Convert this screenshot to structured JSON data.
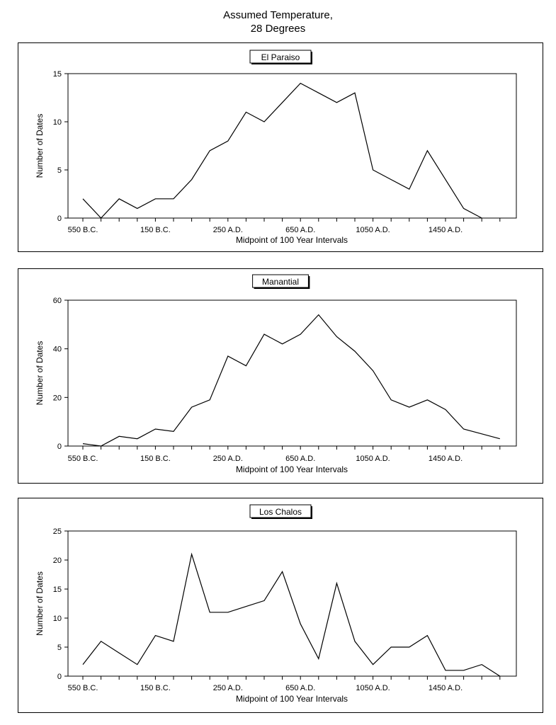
{
  "title": {
    "line1": "Assumed Temperature,",
    "line2": "28 Degrees"
  },
  "chart_data": [
    {
      "type": "line",
      "title": "El Paraiso",
      "xlabel": "Midpoint of 100 Year Intervals",
      "ylabel": "Number of Dates",
      "ylim": [
        0,
        15
      ],
      "yticks": [
        0,
        5,
        10,
        15
      ],
      "x_tick_labels": [
        "550 B.C.",
        "150 B.C.",
        "250 A.D.",
        "650 A.D.",
        "1050 A.D.",
        "1450 A.D."
      ],
      "x": [
        "550 B.C.",
        "450 B.C.",
        "350 B.C.",
        "250 B.C.",
        "150 B.C.",
        "50 B.C.",
        "50 A.D.",
        "150 A.D.",
        "250 A.D.",
        "350 A.D.",
        "450 A.D.",
        "550 A.D.",
        "650 A.D.",
        "750 A.D.",
        "850 A.D.",
        "950 A.D.",
        "1050 A.D.",
        "1150 A.D.",
        "1250 A.D.",
        "1350 A.D.",
        "1450 A.D.",
        "1550 A.D.",
        "1650 A.D.",
        "1750 A.D."
      ],
      "values": [
        2,
        0,
        2,
        1,
        2,
        2,
        4,
        7,
        8,
        11,
        10,
        12,
        14,
        13,
        12,
        13,
        5,
        4,
        3,
        7,
        4,
        1,
        0,
        null
      ],
      "grid": false
    },
    {
      "type": "line",
      "title": "Manantial",
      "xlabel": "Midpoint of 100 Year Intervals",
      "ylabel": "Number of Dates",
      "ylim": [
        0,
        60
      ],
      "yticks": [
        0,
        20,
        40,
        60
      ],
      "x_tick_labels": [
        "550 B.C.",
        "150 B.C.",
        "250 A.D.",
        "650 A.D.",
        "1050 A.D.",
        "1450 A.D."
      ],
      "x": [
        "550 B.C.",
        "450 B.C.",
        "350 B.C.",
        "250 B.C.",
        "150 B.C.",
        "50 B.C.",
        "50 A.D.",
        "150 A.D.",
        "250 A.D.",
        "350 A.D.",
        "450 A.D.",
        "550 A.D.",
        "650 A.D.",
        "750 A.D.",
        "850 A.D.",
        "950 A.D.",
        "1050 A.D.",
        "1150 A.D.",
        "1250 A.D.",
        "1350 A.D.",
        "1450 A.D.",
        "1550 A.D.",
        "1650 A.D.",
        "1750 A.D."
      ],
      "values": [
        1,
        0,
        4,
        3,
        7,
        6,
        16,
        19,
        37,
        33,
        46,
        42,
        46,
        54,
        45,
        39,
        31,
        19,
        16,
        19,
        15,
        7,
        5,
        3
      ],
      "grid": false
    },
    {
      "type": "line",
      "title": "Los Chalos",
      "xlabel": "Midpoint of 100 Year Intervals",
      "ylabel": "Number of Dates",
      "ylim": [
        0,
        25
      ],
      "yticks": [
        0,
        5,
        10,
        15,
        20,
        25
      ],
      "x_tick_labels": [
        "550 B.C.",
        "150 B.C.",
        "250 A.D.",
        "650 A.D.",
        "1050 A.D.",
        "1450 A.D."
      ],
      "x": [
        "550 B.C.",
        "450 B.C.",
        "350 B.C.",
        "250 B.C.",
        "150 B.C.",
        "50 B.C.",
        "50 A.D.",
        "150 A.D.",
        "250 A.D.",
        "350 A.D.",
        "450 A.D.",
        "550 A.D.",
        "650 A.D.",
        "750 A.D.",
        "850 A.D.",
        "950 A.D.",
        "1050 A.D.",
        "1150 A.D.",
        "1250 A.D.",
        "1350 A.D.",
        "1450 A.D.",
        "1550 A.D.",
        "1650 A.D.",
        "1750 A.D."
      ],
      "values": [
        2,
        6,
        4,
        2,
        7,
        6,
        21,
        11,
        11,
        12,
        13,
        18,
        9,
        3,
        16,
        6,
        2,
        5,
        5,
        7,
        1,
        1,
        2,
        0
      ],
      "grid": false
    }
  ]
}
